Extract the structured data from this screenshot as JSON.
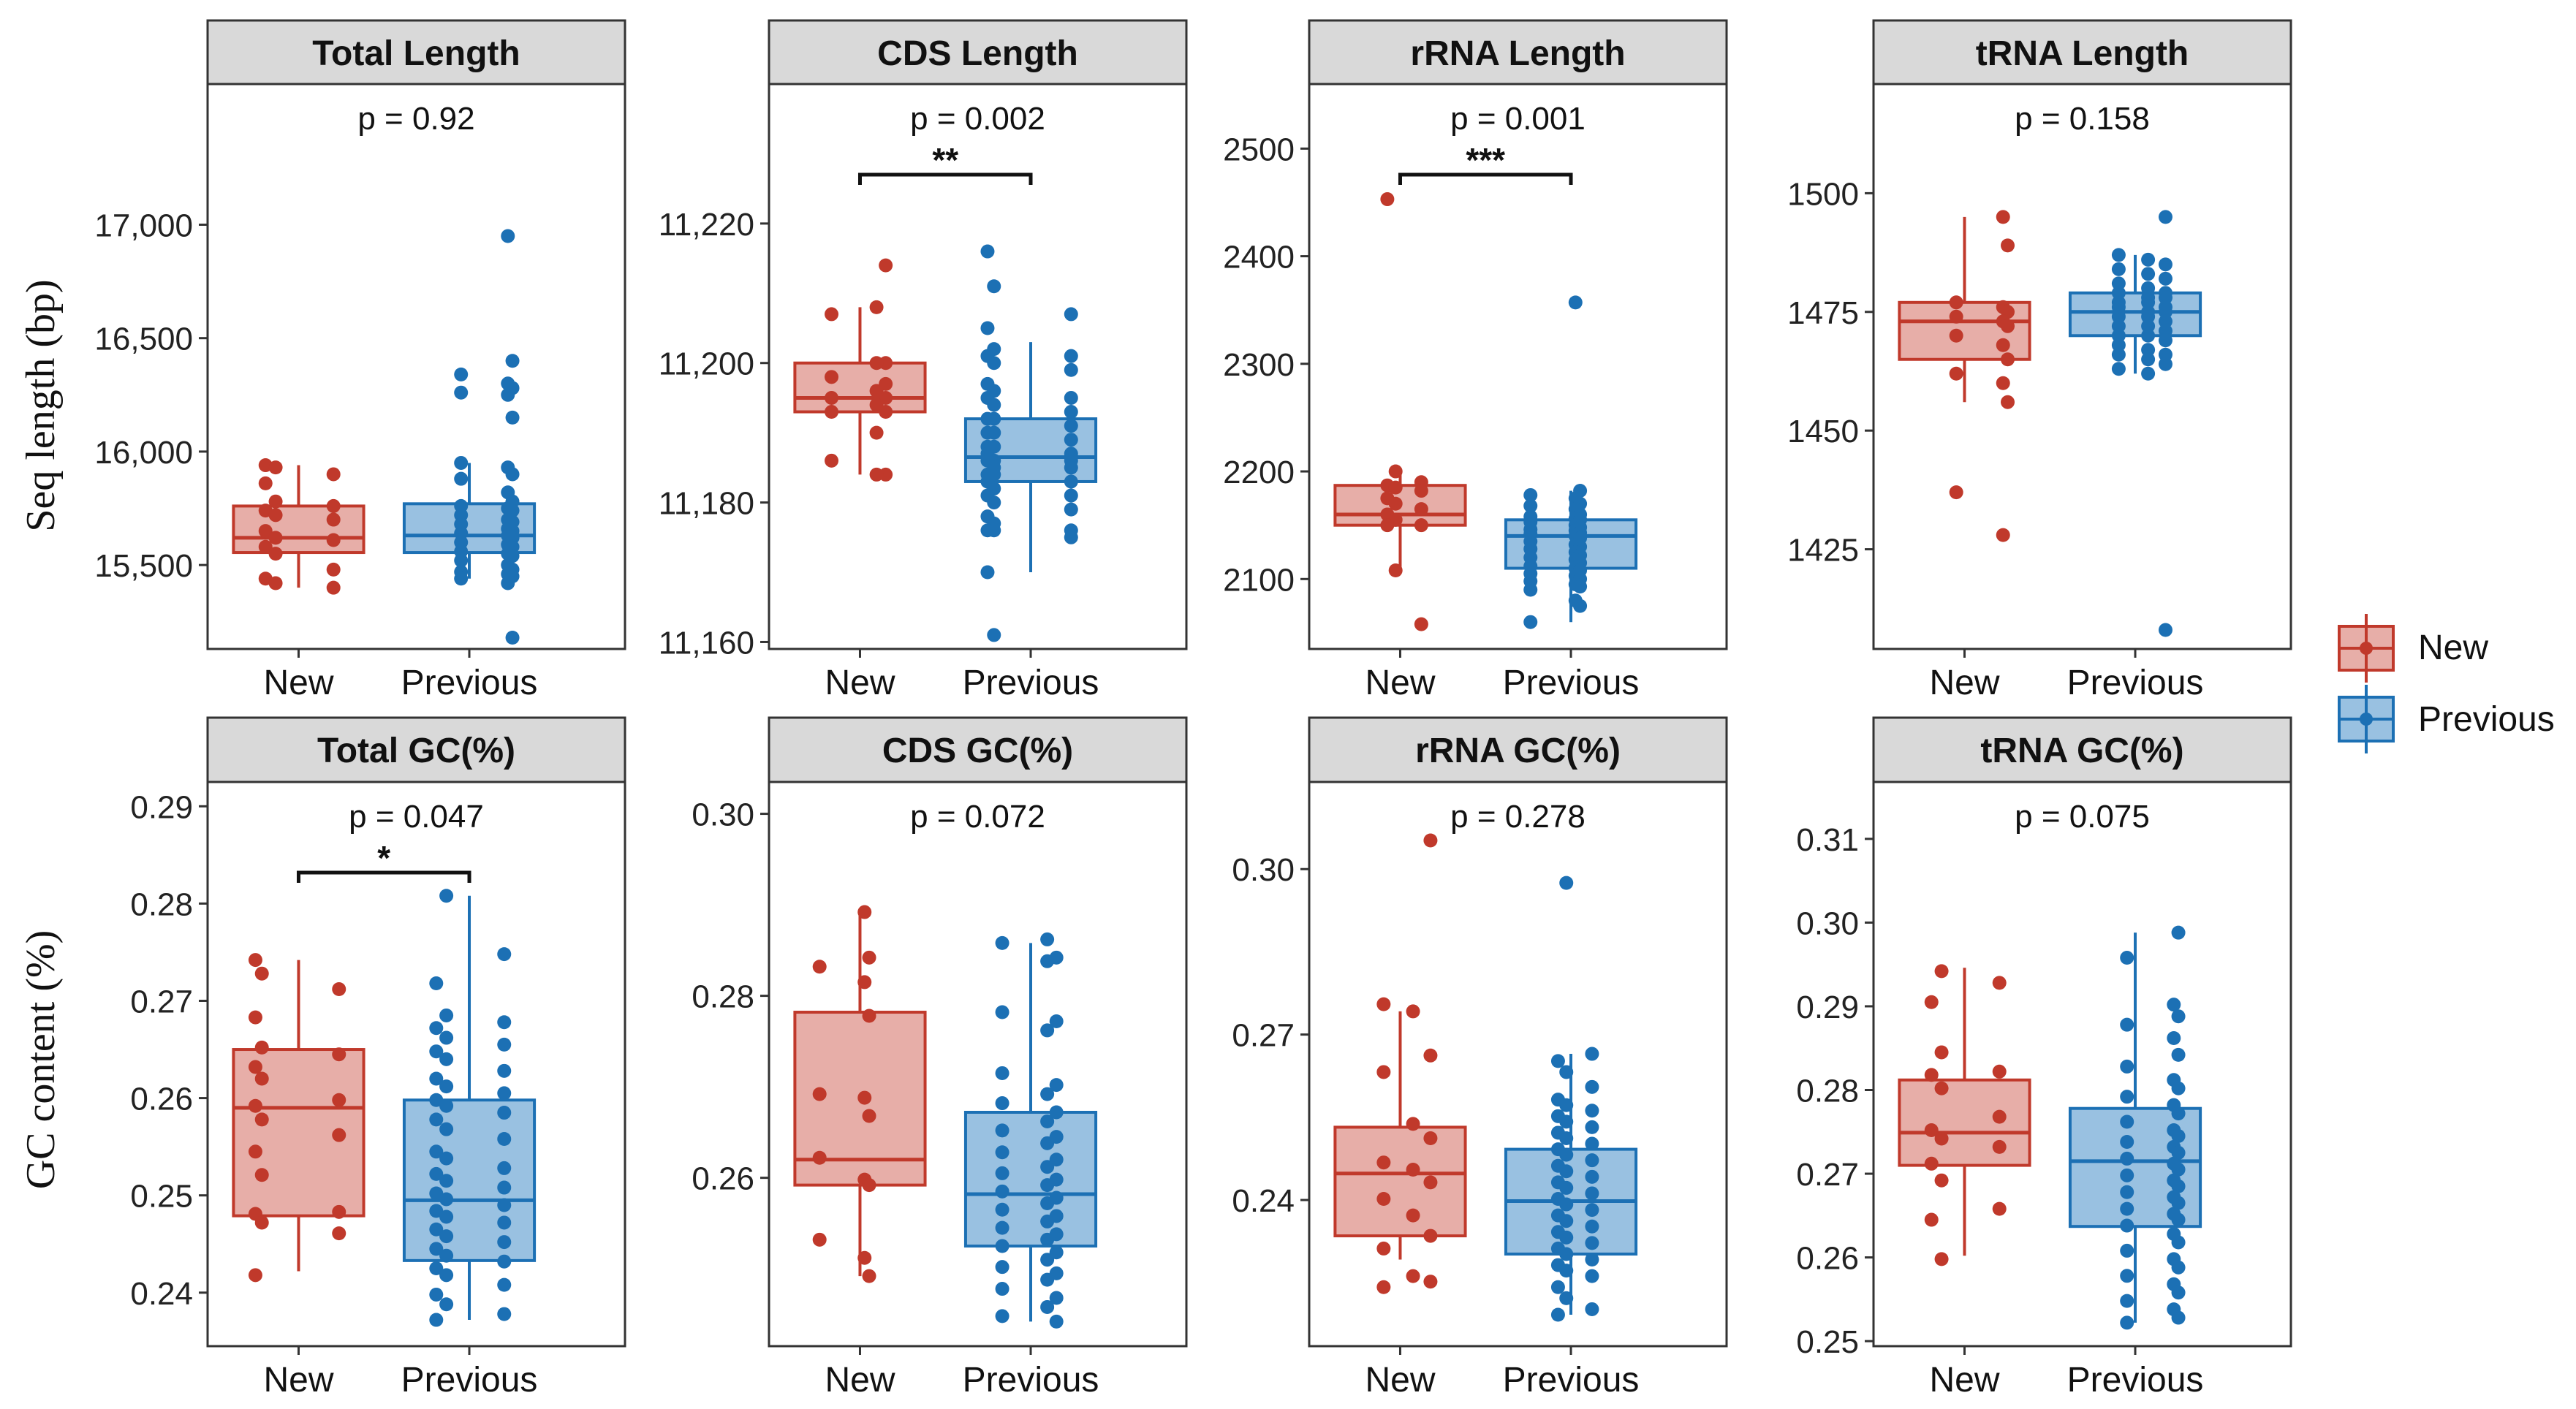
{
  "figure": {
    "ylabel_top": "Seq length (bp)",
    "ylabel_bottom": "GC content (%)"
  },
  "legend": {
    "entries": [
      "New",
      "Previous"
    ]
  },
  "colors": {
    "new": "#c0392b",
    "new_fill": "#dd8c83",
    "previous": "#1c70b4",
    "previous_fill": "#7fb1d9",
    "strip_bg": "#d9d9d9",
    "axis": "#333333"
  },
  "chart_data": [
    {
      "type": "box",
      "title": "Total  Length",
      "categories": [
        "New",
        "Previous"
      ],
      "ylim": [
        15130,
        17620
      ],
      "yticks": [
        15500,
        16000,
        16500,
        17000
      ],
      "ytick_labels": [
        "15,500",
        "16,000",
        "16,500",
        "17,000"
      ],
      "pvalue": "p = 0.92",
      "signif": "",
      "boxes": [
        {
          "group": "New",
          "min": 15400,
          "q1": 15555,
          "median": 15620,
          "q3": 15760,
          "max": 15940
        },
        {
          "group": "Previous",
          "min": 15440,
          "q1": 15555,
          "median": 15630,
          "q3": 15770,
          "max": 15950
        }
      ],
      "points": [
        [
          15940,
          15930,
          15900,
          15860,
          15780,
          15760,
          15740,
          15720,
          15700,
          15650,
          15620,
          15610,
          15580,
          15550,
          15480,
          15440,
          15420,
          15400
        ],
        [
          16950,
          16400,
          16340,
          16300,
          16280,
          16260,
          16250,
          16150,
          15950,
          15930,
          15900,
          15880,
          15820,
          15780,
          15760,
          15750,
          15740,
          15720,
          15700,
          15690,
          15680,
          15660,
          15650,
          15640,
          15630,
          15620,
          15600,
          15590,
          15580,
          15560,
          15550,
          15540,
          15520,
          15500,
          15480,
          15470,
          15460,
          15450,
          15440,
          15420,
          15180
        ]
      ]
    },
    {
      "type": "box",
      "title": "CDS Length",
      "categories": [
        "New",
        "Previous"
      ],
      "ylim": [
        11159,
        11240
      ],
      "yticks": [
        11160,
        11180,
        11200,
        11220
      ],
      "ytick_labels": [
        "11,160",
        "11,180",
        "11,200",
        "11,220"
      ],
      "pvalue": "p = 0.002",
      "signif": "**",
      "boxes": [
        {
          "group": "New",
          "min": 11184,
          "q1": 11193,
          "median": 11195,
          "q3": 11200,
          "max": 11208
        },
        {
          "group": "Previous",
          "min": 11170,
          "q1": 11183,
          "median": 11186.5,
          "q3": 11192,
          "max": 11203
        }
      ],
      "points": [
        [
          11214,
          11208,
          11207,
          11200,
          11200,
          11198,
          11197,
          11196,
          11195,
          11195,
          11194,
          11193,
          11193,
          11190,
          11186,
          11184,
          11184
        ],
        [
          11216,
          11211,
          11207,
          11205,
          11202,
          11201,
          11201,
          11200,
          11199,
          11197,
          11196,
          11195,
          11195,
          11194,
          11193,
          11192,
          11192,
          11191,
          11190,
          11190,
          11189,
          11188,
          11188,
          11187,
          11187,
          11186,
          11186,
          11186,
          11185,
          11185,
          11184,
          11184,
          11183,
          11183,
          11182,
          11181,
          11181,
          11180,
          11179,
          11178,
          11177,
          11176,
          11176,
          11176,
          11175,
          11170,
          11161
        ]
      ]
    },
    {
      "type": "box",
      "title": "rRNA Length",
      "categories": [
        "New",
        "Previous"
      ],
      "ylim": [
        2035,
        2560
      ],
      "yticks": [
        2100,
        2200,
        2300,
        2400,
        2500
      ],
      "ytick_labels": [
        "2100",
        "2200",
        "2300",
        "2400",
        "2500"
      ],
      "pvalue": "p = 0.001",
      "signif": "***",
      "boxes": [
        {
          "group": "New",
          "min": 2108,
          "q1": 2150,
          "median": 2160,
          "q3": 2187,
          "max": 2200
        },
        {
          "group": "Previous",
          "min": 2060,
          "q1": 2110,
          "median": 2140,
          "q3": 2155,
          "max": 2182
        }
      ],
      "points": [
        [
          2453,
          2200,
          2190,
          2187,
          2185,
          2182,
          2175,
          2170,
          2165,
          2160,
          2155,
          2150,
          2150,
          2108,
          2058
        ],
        [
          2357,
          2182,
          2178,
          2175,
          2170,
          2168,
          2165,
          2160,
          2158,
          2156,
          2155,
          2153,
          2150,
          2148,
          2146,
          2145,
          2143,
          2142,
          2140,
          2138,
          2135,
          2132,
          2130,
          2128,
          2125,
          2122,
          2120,
          2118,
          2115,
          2112,
          2110,
          2108,
          2105,
          2103,
          2100,
          2098,
          2095,
          2093,
          2090,
          2080,
          2075,
          2060
        ]
      ]
    },
    {
      "type": "box",
      "title": "tRNA Length",
      "categories": [
        "New",
        "Previous"
      ],
      "ylim": [
        1404,
        1523
      ],
      "yticks": [
        1425,
        1450,
        1475,
        1500
      ],
      "ytick_labels": [
        "1425",
        "1450",
        "1475",
        "1500"
      ],
      "pvalue": "p = 0.158",
      "signif": "",
      "boxes": [
        {
          "group": "New",
          "min": 1456,
          "q1": 1465,
          "median": 1473,
          "q3": 1477,
          "max": 1495
        },
        {
          "group": "Previous",
          "min": 1462,
          "q1": 1470,
          "median": 1475,
          "q3": 1479,
          "max": 1487
        }
      ],
      "points": [
        [
          1495,
          1489,
          1477,
          1476,
          1475,
          1474,
          1473,
          1472,
          1470,
          1468,
          1465,
          1462,
          1460,
          1456,
          1437,
          1428
        ],
        [
          1495,
          1487,
          1486,
          1485,
          1484,
          1483,
          1482,
          1481,
          1480,
          1479,
          1479,
          1478,
          1478,
          1477,
          1477,
          1476,
          1476,
          1475,
          1475,
          1474,
          1474,
          1473,
          1472,
          1472,
          1471,
          1470,
          1470,
          1469,
          1468,
          1467,
          1466,
          1466,
          1465,
          1464,
          1463,
          1462,
          1408
        ]
      ]
    },
    {
      "type": "box",
      "title": "Total GC(%)",
      "categories": [
        "New",
        "Previous"
      ],
      "ylim": [
        0.2345,
        0.2925
      ],
      "yticks": [
        0.24,
        0.25,
        0.26,
        0.27,
        0.28,
        0.29
      ],
      "ytick_labels": [
        "0.24",
        "0.25",
        "0.26",
        "0.27",
        "0.28",
        "0.29"
      ],
      "pvalue": "p = 0.047",
      "signif": "*",
      "boxes": [
        {
          "group": "New",
          "min": 0.2422,
          "q1": 0.2479,
          "median": 0.259,
          "q3": 0.265,
          "max": 0.2742
        },
        {
          "group": "Previous",
          "min": 0.2372,
          "q1": 0.2433,
          "median": 0.2495,
          "q3": 0.2598,
          "max": 0.2808
        }
      ],
      "points": [
        [
          0.2742,
          0.2728,
          0.2712,
          0.2683,
          0.2652,
          0.2645,
          0.2632,
          0.262,
          0.2598,
          0.2592,
          0.2578,
          0.2562,
          0.2545,
          0.2521,
          0.2483,
          0.2481,
          0.2472,
          0.2461,
          0.2418
        ],
        [
          0.2808,
          0.2748,
          0.2718,
          0.2685,
          0.2678,
          0.2672,
          0.2662,
          0.2655,
          0.2648,
          0.264,
          0.2628,
          0.262,
          0.2612,
          0.2605,
          0.2598,
          0.2592,
          0.2585,
          0.2578,
          0.2568,
          0.2558,
          0.2545,
          0.2538,
          0.2528,
          0.2522,
          0.2515,
          0.2508,
          0.2502,
          0.2496,
          0.249,
          0.2484,
          0.2478,
          0.2472,
          0.2465,
          0.2458,
          0.2452,
          0.2445,
          0.2438,
          0.2432,
          0.2425,
          0.2418,
          0.2408,
          0.2398,
          0.2388,
          0.2378,
          0.2372
        ]
      ]
    },
    {
      "type": "box",
      "title": "CDS GC(%)",
      "categories": [
        "New",
        "Previous"
      ],
      "ylim": [
        0.2415,
        0.3035
      ],
      "yticks": [
        0.26,
        0.28,
        0.3
      ],
      "ytick_labels": [
        "0.26",
        "0.28",
        "0.30"
      ],
      "pvalue": "p = 0.072",
      "signif": "",
      "boxes": [
        {
          "group": "New",
          "min": 0.2492,
          "q1": 0.2592,
          "median": 0.262,
          "q3": 0.2782,
          "max": 0.2892
        },
        {
          "group": "Previous",
          "min": 0.2442,
          "q1": 0.2525,
          "median": 0.2582,
          "q3": 0.2672,
          "max": 0.2858
        }
      ],
      "points": [
        [
          0.2892,
          0.2842,
          0.2832,
          0.2815,
          0.2778,
          0.2692,
          0.2688,
          0.2668,
          0.2622,
          0.2598,
          0.2592,
          0.2532,
          0.2512,
          0.2492
        ],
        [
          0.2862,
          0.2858,
          0.2842,
          0.2838,
          0.2782,
          0.2772,
          0.2762,
          0.2715,
          0.2702,
          0.2692,
          0.2682,
          0.2672,
          0.2662,
          0.2652,
          0.2645,
          0.2638,
          0.2628,
          0.262,
          0.2612,
          0.2605,
          0.2598,
          0.2592,
          0.2585,
          0.2578,
          0.2572,
          0.2565,
          0.2558,
          0.2552,
          0.2545,
          0.2538,
          0.2532,
          0.2525,
          0.2518,
          0.251,
          0.2502,
          0.2495,
          0.2488,
          0.2478,
          0.2468,
          0.2458,
          0.2448,
          0.2442
        ]
      ]
    },
    {
      "type": "box",
      "title": "rRNA GC(%)",
      "categories": [
        "New",
        "Previous"
      ],
      "ylim": [
        0.2135,
        0.3158
      ],
      "yticks": [
        0.24,
        0.27,
        0.3
      ],
      "ytick_labels": [
        "0.24",
        "0.27",
        "0.30"
      ],
      "pvalue": "p = 0.278",
      "signif": "",
      "boxes": [
        {
          "group": "New",
          "min": 0.2292,
          "q1": 0.2335,
          "median": 0.2448,
          "q3": 0.2532,
          "max": 0.2742
        },
        {
          "group": "Previous",
          "min": 0.2192,
          "q1": 0.2302,
          "median": 0.2398,
          "q3": 0.2492,
          "max": 0.2665
        }
      ],
      "points": [
        [
          0.3052,
          0.2755,
          0.2742,
          0.2662,
          0.2632,
          0.2538,
          0.2512,
          0.2468,
          0.2455,
          0.2432,
          0.2402,
          0.2372,
          0.2335,
          0.2312,
          0.2262,
          0.2252,
          0.2242
        ],
        [
          0.2975,
          0.2665,
          0.2652,
          0.2632,
          0.2605,
          0.2582,
          0.2572,
          0.2562,
          0.2552,
          0.2542,
          0.2532,
          0.2522,
          0.2512,
          0.2502,
          0.2492,
          0.2482,
          0.2472,
          0.2462,
          0.2452,
          0.2442,
          0.2432,
          0.2422,
          0.2412,
          0.2402,
          0.2392,
          0.2382,
          0.2372,
          0.2362,
          0.2352,
          0.2342,
          0.2332,
          0.2322,
          0.2312,
          0.2302,
          0.2292,
          0.2282,
          0.2272,
          0.2262,
          0.2242,
          0.2222,
          0.2202,
          0.2192
        ]
      ]
    },
    {
      "type": "box",
      "title": "tRNA GC(%)",
      "categories": [
        "New",
        "Previous"
      ],
      "ylim": [
        0.2494,
        0.3168
      ],
      "yticks": [
        0.25,
        0.26,
        0.27,
        0.28,
        0.29,
        0.3,
        0.31
      ],
      "ytick_labels": [
        "0.25",
        "0.26",
        "0.27",
        "0.28",
        "0.29",
        "0.30",
        "0.31"
      ],
      "pvalue": "p = 0.075",
      "signif": "",
      "boxes": [
        {
          "group": "New",
          "min": 0.2602,
          "q1": 0.271,
          "median": 0.2749,
          "q3": 0.2812,
          "max": 0.2946
        },
        {
          "group": "Previous",
          "min": 0.2522,
          "q1": 0.2637,
          "median": 0.2715,
          "q3": 0.2778,
          "max": 0.2988
        }
      ],
      "points": [
        [
          0.2942,
          0.2928,
          0.2905,
          0.2845,
          0.2822,
          0.2818,
          0.2802,
          0.2768,
          0.2752,
          0.2742,
          0.2732,
          0.2712,
          0.2692,
          0.2658,
          0.2645,
          0.2598
        ],
        [
          0.2988,
          0.2958,
          0.2902,
          0.2888,
          0.2878,
          0.2862,
          0.2842,
          0.2828,
          0.2812,
          0.2802,
          0.2792,
          0.2782,
          0.2772,
          0.2762,
          0.2752,
          0.2745,
          0.2738,
          0.2732,
          0.2725,
          0.2718,
          0.2712,
          0.2705,
          0.2698,
          0.2692,
          0.2685,
          0.2678,
          0.2672,
          0.2665,
          0.2658,
          0.2652,
          0.2645,
          0.2638,
          0.2628,
          0.2618,
          0.2608,
          0.2598,
          0.2588,
          0.2578,
          0.2568,
          0.2558,
          0.2548,
          0.2538,
          0.2528,
          0.2522
        ]
      ]
    }
  ]
}
